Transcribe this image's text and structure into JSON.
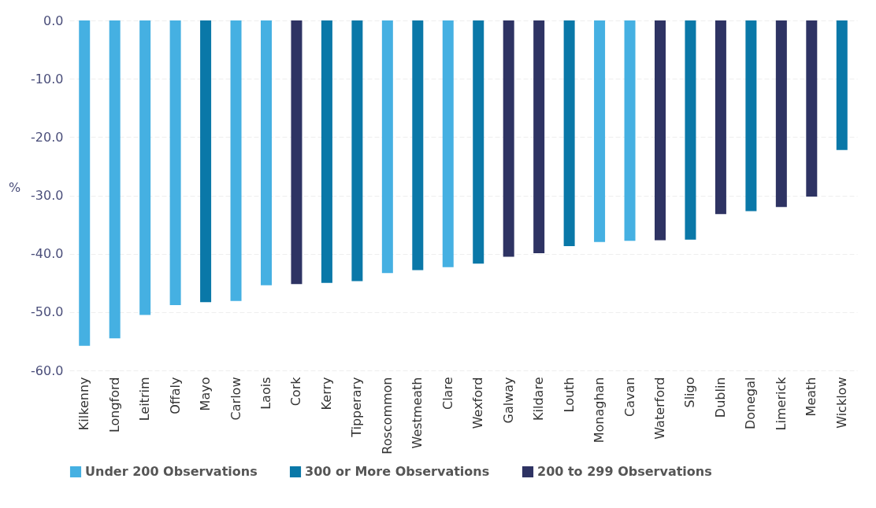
{
  "chart_data": {
    "type": "bar",
    "ylabel": "%",
    "categories": [
      "Kilkenny",
      "Longford",
      "Leitrim",
      "Offaly",
      "Mayo",
      "Carlow",
      "Laois",
      "Cork",
      "Kerry",
      "Tipperary",
      "Roscommon",
      "Westmeath",
      "Clare",
      "Wexford",
      "Galway",
      "Kildare",
      "Louth",
      "Monaghan",
      "Cavan",
      "Waterford",
      "Sligo",
      "Dublin",
      "Donegal",
      "Limerick",
      "Meath",
      "Wicklow"
    ],
    "series": [
      {
        "name": "Under 200 Observations",
        "color": "#45b0e2",
        "values": [
          -55.8,
          -54.5,
          -50.5,
          -48.8,
          null,
          -48.1,
          -45.4,
          null,
          null,
          null,
          -43.3,
          null,
          -42.3,
          null,
          null,
          null,
          null,
          -38.0,
          -37.8,
          null,
          null,
          null,
          null,
          null,
          null,
          null
        ]
      },
      {
        "name": "300 or More Observations",
        "color": "#0a78a8",
        "values": [
          null,
          null,
          null,
          null,
          -48.3,
          null,
          null,
          null,
          -45.0,
          -44.7,
          null,
          -42.8,
          null,
          -41.7,
          null,
          null,
          -38.7,
          null,
          null,
          null,
          -37.6,
          null,
          -32.7,
          null,
          null,
          -22.2
        ]
      },
      {
        "name": "200 to 299 Observations",
        "color": "#2e3363",
        "values": [
          null,
          null,
          null,
          null,
          null,
          null,
          null,
          -45.2,
          null,
          null,
          null,
          null,
          null,
          null,
          -40.5,
          -39.9,
          null,
          null,
          null,
          -37.7,
          null,
          -33.2,
          null,
          -32.0,
          -30.2,
          null
        ]
      }
    ],
    "ylim": [
      -60,
      0
    ],
    "yticks": [
      {
        "value": -60,
        "label": "-60.0"
      },
      {
        "value": -50,
        "label": "-50.0"
      },
      {
        "value": -40,
        "label": "-40.0"
      },
      {
        "value": -30,
        "label": "-30.0"
      },
      {
        "value": -20,
        "label": "-20.0"
      },
      {
        "value": -10,
        "label": "-10.0"
      },
      {
        "value": 0,
        "label": "0.0"
      }
    ],
    "grid": "y",
    "legend": "bottom"
  }
}
